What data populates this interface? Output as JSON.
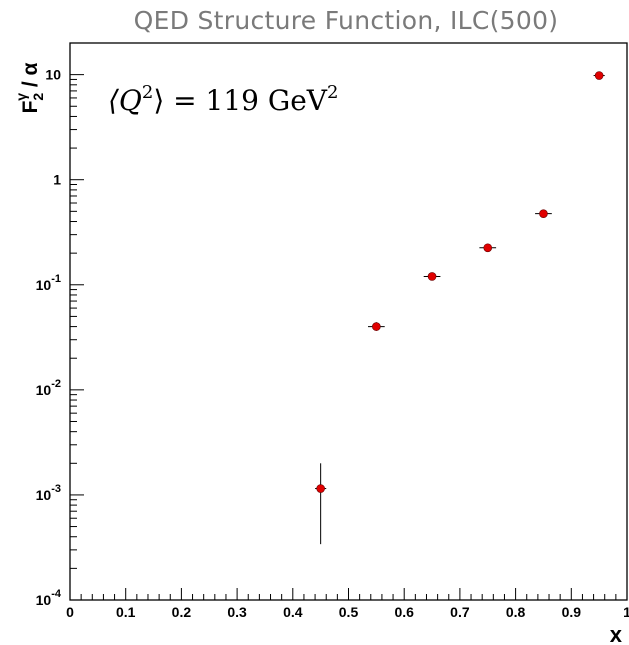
{
  "chart_data": {
    "type": "scatter",
    "title": "QED Structure Function, ILC(500)",
    "xlabel": "x",
    "ylabel_main": "F",
    "ylabel_sub": "2",
    "ylabel_sup": "γ",
    "ylabel_rest": " / α",
    "annotation": {
      "prefix": "⟨Q",
      "exp": "2",
      "middle": "⟩ = 119 GeV",
      "exp2": "2"
    },
    "xlim": [
      0,
      1
    ],
    "ylim": [
      0.0001,
      20
    ],
    "yscale": "log",
    "grid": false,
    "x_ticks": [
      "0",
      "0.1",
      "0.2",
      "0.3",
      "0.4",
      "0.5",
      "0.6",
      "0.7",
      "0.8",
      "0.9",
      "1"
    ],
    "y_ticks": [
      {
        "value": 10,
        "base": "10",
        "exp": ""
      },
      {
        "value": 1,
        "base": "1",
        "exp": ""
      },
      {
        "value": 0.1,
        "base": "10",
        "exp": "-1"
      },
      {
        "value": 0.01,
        "base": "10",
        "exp": "-2"
      },
      {
        "value": 0.001,
        "base": "10",
        "exp": "-3"
      },
      {
        "value": 0.0001,
        "base": "10",
        "exp": "-4"
      }
    ],
    "marker_color": "#e00000",
    "points": [
      {
        "x": 0.45,
        "y": 0.00115,
        "y_low": 0.00034,
        "y_high": 0.002,
        "x_err": 0.01
      },
      {
        "x": 0.55,
        "y": 0.04,
        "y_low": 0.0365,
        "y_high": 0.044,
        "x_err": 0.015
      },
      {
        "x": 0.65,
        "y": 0.12,
        "y_low": 0.112,
        "y_high": 0.127,
        "x_err": 0.015
      },
      {
        "x": 0.75,
        "y": 0.225,
        "y_low": 0.215,
        "y_high": 0.235,
        "x_err": 0.015
      },
      {
        "x": 0.85,
        "y": 0.475,
        "y_low": 0.46,
        "y_high": 0.49,
        "x_err": 0.015
      },
      {
        "x": 0.95,
        "y": 9.8,
        "y_low": 9.5,
        "y_high": 10.1,
        "x_err": 0.01
      }
    ]
  }
}
